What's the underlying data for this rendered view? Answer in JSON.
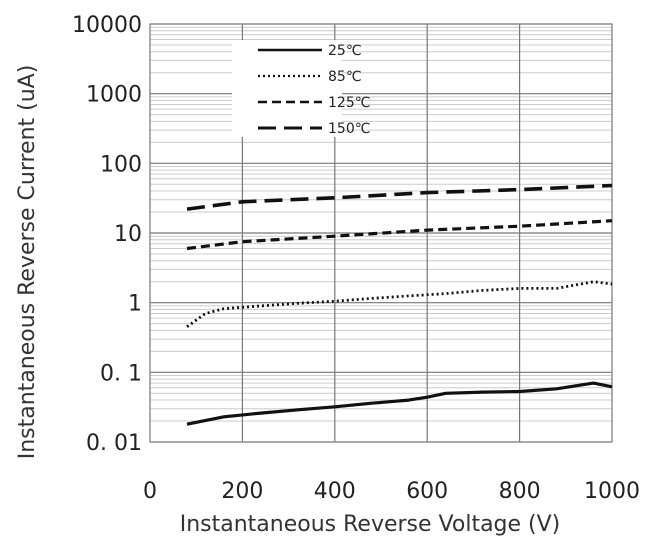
{
  "chart_data": {
    "type": "line",
    "xlabel": "Instantaneous Reverse Voltage (V)",
    "ylabel": "Instantaneous Reverse Current (uA)",
    "xlim": [
      0,
      1000
    ],
    "ylim": [
      0.01,
      10000
    ],
    "yscale": "log",
    "grid": true,
    "legend_position": "top-left",
    "x_ticks": [
      "0",
      "200",
      "400",
      "600",
      "800",
      "1000"
    ],
    "y_ticks": [
      "0. 01",
      "0. 1",
      "1",
      "10",
      "100",
      "1000",
      "10000"
    ],
    "series": [
      {
        "name": "25℃",
        "style": "solid",
        "x": [
          80,
          160,
          240,
          320,
          400,
          480,
          560,
          600,
          640,
          720,
          800,
          880,
          960,
          1000
        ],
        "y": [
          0.018,
          0.023,
          0.026,
          0.029,
          0.032,
          0.036,
          0.04,
          0.044,
          0.05,
          0.052,
          0.053,
          0.058,
          0.07,
          0.062
        ]
      },
      {
        "name": "85℃",
        "style": "dotted",
        "x": [
          80,
          120,
          160,
          240,
          320,
          400,
          480,
          560,
          640,
          720,
          800,
          880,
          960,
          1000
        ],
        "y": [
          0.45,
          0.7,
          0.82,
          0.9,
          0.98,
          1.05,
          1.15,
          1.25,
          1.35,
          1.5,
          1.6,
          1.6,
          2.0,
          1.85
        ]
      },
      {
        "name": "125℃",
        "style": "dashed",
        "x": [
          80,
          200,
          400,
          600,
          800,
          1000
        ],
        "y": [
          6,
          7.5,
          9,
          11,
          12.5,
          15
        ]
      },
      {
        "name": "150℃",
        "style": "longdash",
        "x": [
          80,
          200,
          400,
          600,
          800,
          1000
        ],
        "y": [
          22,
          28,
          32,
          38,
          42,
          48
        ]
      }
    ]
  }
}
